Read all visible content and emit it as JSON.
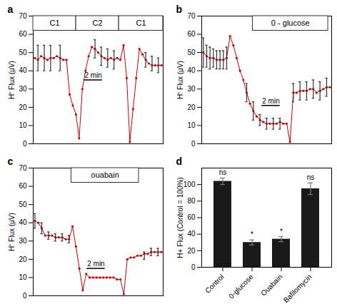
{
  "chart_data": [
    {
      "type": "line",
      "title": "a",
      "ylabel": "H⁺ Flux (μV)",
      "color": "#cc0000",
      "marker": "circle",
      "x": [
        0,
        1,
        2,
        3,
        4,
        5,
        6,
        7,
        8,
        9,
        10,
        11,
        12,
        13,
        14,
        15,
        16,
        17,
        18,
        19,
        20,
        21,
        22,
        23,
        24,
        25,
        26,
        27,
        28,
        29,
        30,
        31,
        32,
        33,
        34,
        35,
        36,
        37,
        38,
        39,
        40
      ],
      "values": [
        47,
        46,
        48,
        47,
        46,
        47,
        47,
        48,
        47,
        46,
        46,
        27,
        21,
        16,
        3,
        30,
        40,
        48,
        53,
        52,
        50,
        48,
        47,
        46,
        47,
        46,
        47,
        46,
        54,
        36,
        1,
        19,
        36,
        52,
        49,
        46,
        44,
        43,
        43,
        43,
        43
      ],
      "error_bars": {
        "x": [
          1,
          3,
          5,
          8,
          19,
          21,
          23,
          25,
          35,
          37,
          39
        ],
        "y": [
          47,
          47,
          47,
          47,
          52,
          48,
          47,
          46,
          46,
          44,
          43
        ],
        "errors": [
          7,
          7,
          7,
          7,
          5,
          5,
          5,
          5,
          4,
          4,
          4
        ]
      },
      "xlim": [
        -0.5,
        40.5
      ],
      "xticks": [],
      "ylim": [
        0,
        70
      ],
      "yticks": [
        0,
        10,
        20,
        30,
        40,
        50,
        60,
        70
      ],
      "tick_labels": "y",
      "scale_bar": {
        "x": [
          15.58,
          21.32
        ],
        "y": 35,
        "label": "2 min"
      },
      "boxes": [
        {
          "label": "C1",
          "x": [
            -0.5,
            13.03
          ],
          "y": [
            62,
            70
          ]
        },
        {
          "label": "C2",
          "x": [
            13.03,
            26.56
          ],
          "y": [
            62,
            70
          ]
        },
        {
          "label": "C1",
          "x": [
            26.56,
            40.5
          ],
          "y": [
            62,
            70
          ]
        }
      ]
    },
    {
      "type": "line",
      "title": "b",
      "ylabel": "H⁺ Flux (μV)",
      "color": "#cc0000",
      "marker": "circle",
      "x": [
        0,
        1,
        2,
        3,
        4,
        5,
        6,
        7,
        8,
        9,
        10,
        11,
        12,
        13,
        14,
        15,
        16,
        17,
        18,
        19,
        20,
        21,
        22,
        23,
        24,
        25,
        26,
        27,
        28,
        29,
        30,
        31,
        32,
        33,
        34,
        35,
        36,
        37,
        38
      ],
      "values": [
        50,
        48,
        47,
        47,
        46,
        46,
        46,
        47,
        59,
        54,
        47,
        40,
        35,
        28,
        22,
        18,
        15,
        13,
        12,
        11,
        11,
        11,
        11,
        12,
        11,
        11,
        1,
        28,
        28,
        29,
        29,
        29,
        30,
        30,
        28,
        29,
        30,
        31,
        31
      ],
      "error_bars": {
        "x": [
          0,
          1,
          2,
          3,
          4,
          5,
          6,
          7,
          13,
          15,
          17,
          19,
          21,
          23,
          27,
          29,
          31,
          33,
          35,
          37
        ],
        "y": [
          50,
          48,
          47,
          47,
          46,
          46,
          46,
          47,
          28,
          18,
          13,
          11,
          11,
          11,
          28,
          29,
          29,
          30,
          29,
          31
        ],
        "errors": [
          8,
          6,
          6,
          5,
          5,
          5,
          5,
          6,
          5,
          5,
          3,
          3,
          3,
          3,
          5,
          5,
          5,
          5,
          5,
          5
        ]
      },
      "xlim": [
        -0.5,
        38.5
      ],
      "xticks": [],
      "ylim": [
        0,
        70
      ],
      "yticks": [
        0,
        10,
        20,
        30,
        40,
        50,
        60,
        70
      ],
      "tick_labels": "y",
      "scale_bar": {
        "x": [
          17.55,
          23.01
        ],
        "y": 21,
        "label": "2 min"
      },
      "boxes": [
        {
          "label": "0 - glucose",
          "x": [
            14.82,
            37.44
          ],
          "y": [
            62,
            70
          ]
        }
      ]
    },
    {
      "type": "line",
      "title": "c",
      "ylabel": "H⁺ Flux (μV)",
      "color": "#cc0000",
      "marker": "circle",
      "x": [
        0,
        1,
        2,
        3,
        4,
        5,
        6,
        7,
        8,
        9,
        10,
        11,
        12,
        13,
        14,
        15,
        16,
        17,
        18,
        19,
        20,
        21,
        22,
        23,
        24,
        25,
        26,
        27,
        28,
        29,
        30,
        31,
        32,
        33,
        34,
        35,
        36,
        37
      ],
      "values": [
        41,
        40,
        37,
        33,
        33,
        33,
        32,
        32,
        32,
        31,
        31,
        38,
        27,
        15,
        3,
        12,
        10,
        10,
        10,
        10,
        10,
        10,
        10,
        10,
        9,
        9,
        1,
        20,
        21,
        21,
        22,
        22,
        23,
        23,
        24,
        24,
        24,
        24
      ],
      "error_bars": {
        "x": [
          0,
          2,
          4,
          6,
          8,
          10,
          32,
          34,
          36
        ],
        "y": [
          41,
          37,
          33,
          32,
          32,
          31,
          22,
          24,
          24
        ],
        "errors": [
          4,
          3,
          2,
          2,
          2,
          2,
          2,
          2,
          2
        ]
      },
      "xlim": [
        -0.5,
        37.5
      ],
      "xticks": [],
      "ylim": [
        0,
        70
      ],
      "yticks": [
        0,
        10,
        20,
        30,
        40,
        50,
        60,
        70
      ],
      "tick_labels": "y",
      "scale_bar": {
        "x": [
          15.2,
          20.52
        ],
        "y": 15,
        "label": "2 min"
      },
      "boxes": [
        {
          "label": "ouabain",
          "x": [
            10.64,
            30.4
          ],
          "y": [
            62,
            70
          ]
        }
      ]
    },
    {
      "type": "bar",
      "title": "d",
      "ylabel": "H+ Flux (Control = 100%)",
      "color": "#1a1a1a",
      "categories": [
        "Control",
        "0-glucose",
        "Ouabain",
        "Bafilomycin"
      ],
      "values": [
        104,
        30,
        34,
        95
      ],
      "errors": [
        4,
        3,
        3,
        7
      ],
      "significance": [
        "ns",
        "*",
        "*",
        "ns"
      ],
      "ylim": [
        0,
        120
      ],
      "yticks": [
        0,
        20,
        40,
        60,
        80,
        100
      ]
    }
  ]
}
